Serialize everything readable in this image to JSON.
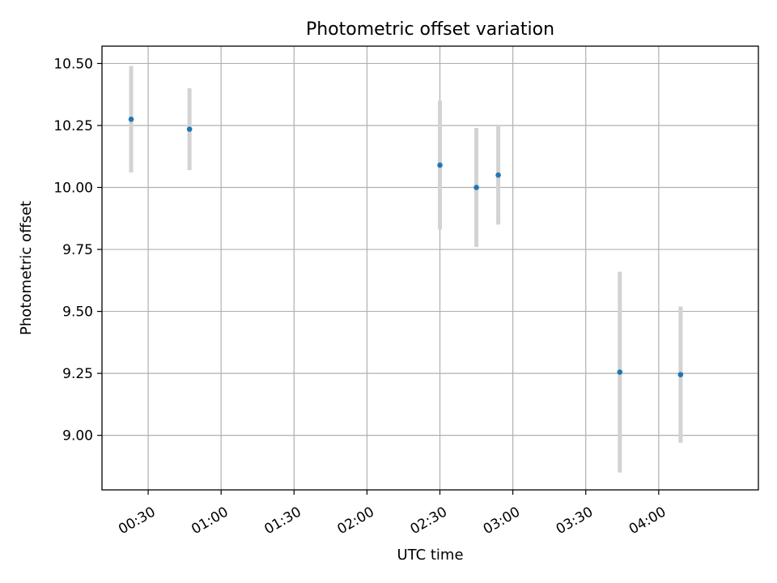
{
  "chart_data": {
    "type": "scatter",
    "title": "Photometric offset variation",
    "xlabel": "UTC time",
    "ylabel": "Photometric offset",
    "grid": true,
    "x_axis": {
      "type": "time",
      "unit": "UTC",
      "range": [
        "00:11",
        "04:41"
      ],
      "ticks": [
        "00:30",
        "01:00",
        "01:30",
        "02:00",
        "02:30",
        "03:00",
        "03:30",
        "04:00"
      ]
    },
    "y_axis": {
      "range": [
        8.78,
        10.57
      ],
      "ticks": [
        9.0,
        9.25,
        9.5,
        9.75,
        10.0,
        10.25,
        10.5
      ],
      "tick_labels": [
        "9.00",
        "9.25",
        "9.50",
        "9.75",
        "10.00",
        "10.25",
        "10.50"
      ]
    },
    "series": [
      {
        "marker_color": "#1f77b4",
        "errorbar_color": "#d3d3d3",
        "points": [
          {
            "time": "00:23",
            "y": 10.275,
            "err_low": 10.06,
            "err_high": 10.49
          },
          {
            "time": "00:47",
            "y": 10.235,
            "err_low": 10.07,
            "err_high": 10.4
          },
          {
            "time": "02:30",
            "y": 10.09,
            "err_low": 9.83,
            "err_high": 10.35
          },
          {
            "time": "02:45",
            "y": 10.0,
            "err_low": 9.76,
            "err_high": 10.24
          },
          {
            "time": "02:54",
            "y": 10.05,
            "err_low": 9.85,
            "err_high": 10.25
          },
          {
            "time": "03:44",
            "y": 9.255,
            "err_low": 8.85,
            "err_high": 9.66
          },
          {
            "time": "04:09",
            "y": 9.245,
            "err_low": 8.97,
            "err_high": 9.52
          }
        ]
      }
    ]
  }
}
